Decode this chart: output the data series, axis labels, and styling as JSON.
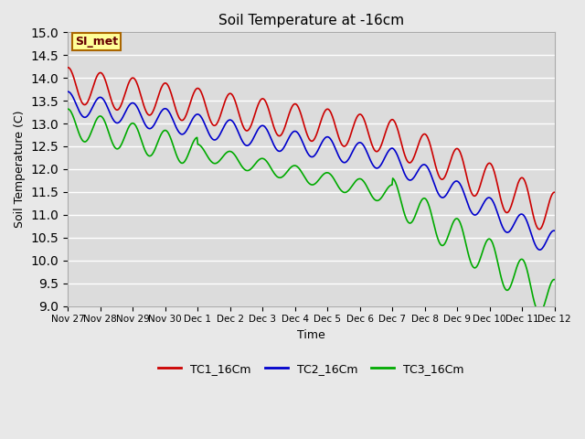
{
  "title": "Soil Temperature at -16cm",
  "xlabel": "Time",
  "ylabel": "Soil Temperature (C)",
  "ylim": [
    9.0,
    15.0
  ],
  "yticks": [
    9.0,
    9.5,
    10.0,
    10.5,
    11.0,
    11.5,
    12.0,
    12.5,
    13.0,
    13.5,
    14.0,
    14.5,
    15.0
  ],
  "fig_bg_color": "#e8e8e8",
  "plot_bg_color": "#dcdcdc",
  "legend_bg_color": "#ffffff",
  "grid_color": "#ffffff",
  "line_colors": [
    "#cc0000",
    "#0000cc",
    "#00aa00"
  ],
  "line_labels": [
    "TC1_16Cm",
    "TC2_16Cm",
    "TC3_16Cm"
  ],
  "annotation_text": "SI_met",
  "annotation_bg": "#ffff99",
  "annotation_border": "#aa6600",
  "xtick_labels": [
    "Nov 27",
    "Nov 28",
    "Nov 29",
    "Nov 30",
    "Dec 1",
    "Dec 2",
    "Dec 3",
    "Dec 4",
    "Dec 5",
    "Dec 6",
    "Dec 7",
    "Dec 8",
    "Dec 9",
    "Dec 10",
    "Dec 11",
    "Dec 12"
  ],
  "num_days": 15,
  "num_points": 720
}
